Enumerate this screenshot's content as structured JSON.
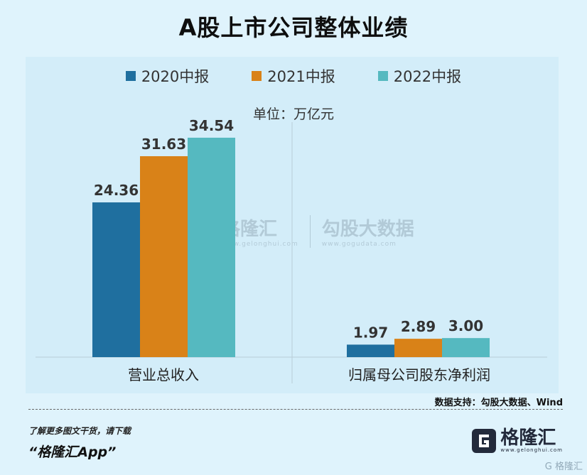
{
  "title": "A股上市公司整体业绩",
  "unit_label": "单位：万亿元",
  "chart_data": {
    "type": "bar",
    "categories": [
      "营业总收入",
      "归属母公司股东净利润"
    ],
    "series": [
      {
        "name": "2020中报",
        "values": [
          24.36,
          1.97
        ],
        "color": "#1f6f9f"
      },
      {
        "name": "2021中报",
        "values": [
          31.63,
          2.89
        ],
        "color": "#d98218"
      },
      {
        "name": "2022中报",
        "values": [
          34.54,
          3.0
        ],
        "color": "#55b9c0"
      }
    ],
    "ylim": [
      0,
      38
    ],
    "legend_position": "top",
    "grid": false
  },
  "watermark": {
    "left_text": "格隆汇",
    "left_sub": "www.gelonghui.com",
    "right_text": "勾股大数据",
    "right_sub": "www.gogudata.com"
  },
  "source": "数据支持：勾股大数据、Wind",
  "footer": {
    "note": "了解更多图文干货，请下载",
    "app": "“格隆汇App”"
  },
  "logo": {
    "text": "格隆汇",
    "sub": "www.gelonghui.com",
    "corner": "G 格隆汇"
  }
}
